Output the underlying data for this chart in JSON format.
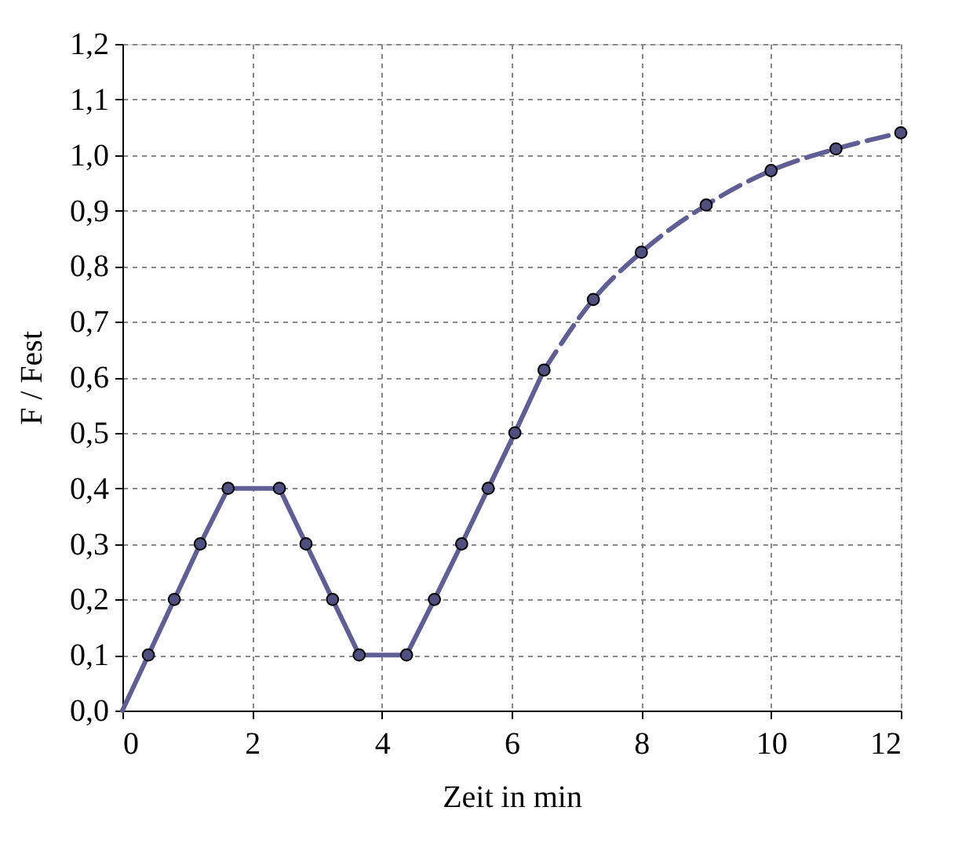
{
  "chart_data": {
    "type": "line",
    "xlabel": "Zeit in min",
    "ylabel": "F / Fest",
    "xlim": [
      0,
      12
    ],
    "xticks": [
      0,
      2,
      4,
      6,
      8,
      10,
      12
    ],
    "ylim": [
      0,
      1.2
    ],
    "yticks": [
      {
        "value": 0,
        "label": "0,0"
      },
      {
        "value": 0.1,
        "label": "0,1"
      },
      {
        "value": 0.2,
        "label": "0,2"
      },
      {
        "value": 0.3,
        "label": "0,3"
      },
      {
        "value": 0.4,
        "label": "0,4"
      },
      {
        "value": 0.5,
        "label": "0,5"
      },
      {
        "value": 0.6,
        "label": "0,6"
      },
      {
        "value": 0.7,
        "label": "0,7"
      },
      {
        "value": 0.8,
        "label": "0,8"
      },
      {
        "value": 0.9,
        "label": "0,9"
      },
      {
        "value": 1.0,
        "label": "1,0"
      },
      {
        "value": 1.1,
        "label": "1,1"
      },
      {
        "value": 1.2,
        "label": "1,2"
      }
    ],
    "grid": true,
    "series": [
      {
        "type": "line",
        "color": "#5f5f96",
        "line_style": "solid",
        "marker": "none",
        "x": [
          0,
          0.4,
          0.8,
          1.2,
          1.63,
          2.42,
          2.83,
          3.24,
          3.65,
          4.38,
          4.81,
          5.23,
          5.64,
          6.05,
          6.5
        ],
        "values": [
          0,
          0.1,
          0.2,
          0.3,
          0.4,
          0.4,
          0.3,
          0.2,
          0.1,
          0.1,
          0.2,
          0.3,
          0.4,
          0.5,
          0.613
        ]
      },
      {
        "type": "line",
        "color": "#5f5f96",
        "line_style": "dashed",
        "marker": "none",
        "x": [
          6.5,
          7.26,
          8.0,
          9.0,
          10.0,
          11.0,
          12.0
        ],
        "values": [
          0.613,
          0.74,
          0.825,
          0.91,
          0.972,
          1.011,
          1.04
        ]
      },
      {
        "type": "scatter",
        "color": "#4f4f80",
        "marker": "circle",
        "x": [
          0.4,
          0.8,
          1.2,
          1.63,
          2.42,
          2.83,
          3.24,
          3.65,
          4.38,
          4.81,
          5.23,
          5.64,
          6.05,
          6.5,
          7.26,
          8.0,
          9.0,
          10.0,
          11.0,
          12.0
        ],
        "values": [
          0.1,
          0.2,
          0.3,
          0.4,
          0.4,
          0.3,
          0.2,
          0.1,
          0.1,
          0.2,
          0.3,
          0.4,
          0.5,
          0.613,
          0.74,
          0.825,
          0.91,
          0.972,
          1.011,
          1.04
        ]
      }
    ]
  }
}
